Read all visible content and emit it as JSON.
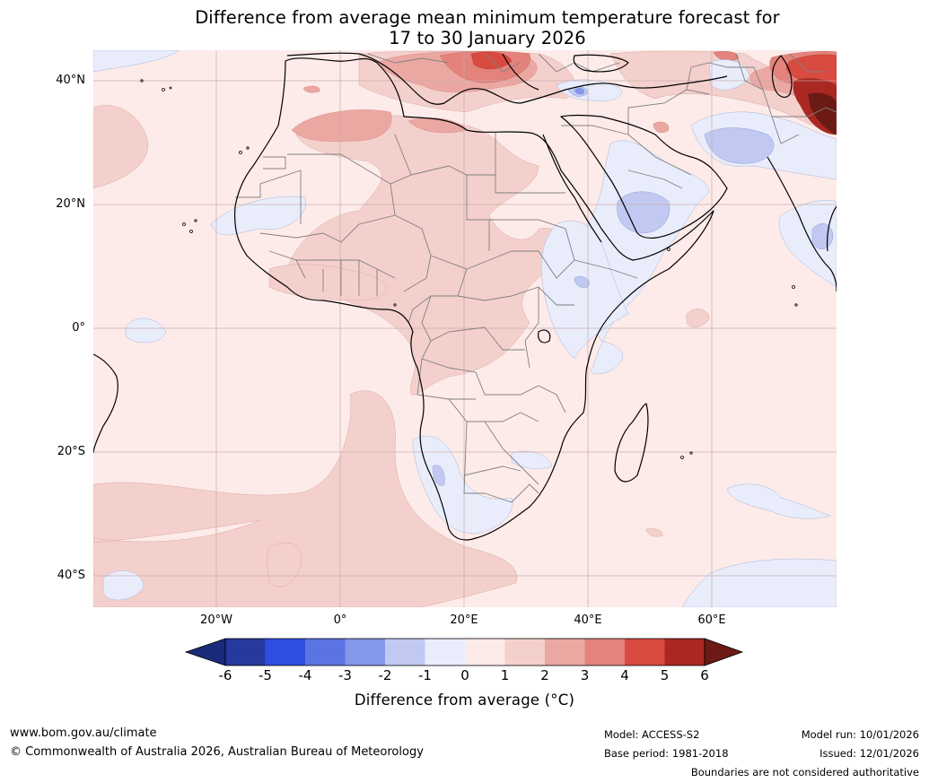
{
  "title": {
    "line1": "Difference from average mean minimum temperature forecast for",
    "line2": "17 to 30 January 2026"
  },
  "map": {
    "lat_labels": [
      "40°N",
      "20°N",
      "0°",
      "20°S",
      "40°S"
    ],
    "lon_labels": [
      "20°W",
      "0°",
      "20°E",
      "40°E",
      "60°E"
    ],
    "extent": {
      "lon_min": -40,
      "lon_max": 80,
      "lat_min": -45,
      "lat_max": 45
    },
    "gridlines": true
  },
  "colorbar": {
    "ticks": [
      "-6",
      "-5",
      "-4",
      "-3",
      "-2",
      "-1",
      "0",
      "1",
      "2",
      "3",
      "4",
      "5",
      "6"
    ],
    "colors": [
      "#25399e",
      "#2f4fe0",
      "#5a74e3",
      "#8597ea",
      "#c1c9f2",
      "#e9edfb",
      "#fcebe9",
      "#f4d0cc",
      "#eba8a3",
      "#e3837c",
      "#d94a40",
      "#aa2821"
    ],
    "under_color": "#1a2a7a",
    "over_color": "#6b1a15",
    "label": "Difference from average (°C)"
  },
  "footer": {
    "url": "www.bom.gov.au/climate",
    "copyright": "© Commonwealth of Australia 2026, Australian Bureau of Meteorology",
    "model": "Model: ACCESS-S2",
    "base_period": "Base period: 1981-2018",
    "model_run": "Model run: 10/01/2026",
    "issued": "Issued: 12/01/2026",
    "disclaimer": "Boundaries are not considered authoritative"
  }
}
